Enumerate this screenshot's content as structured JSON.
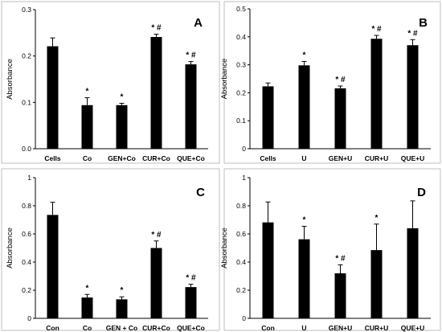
{
  "chart_data": [
    {
      "type": "bar",
      "panel_label": "A",
      "ylabel": "Absorbance",
      "categories": [
        "Cells",
        "Co",
        "GEN+Co",
        "CUR+Co",
        "QUE+Co"
      ],
      "values": [
        0.221,
        0.094,
        0.094,
        0.241,
        0.182
      ],
      "errors": [
        0.018,
        0.016,
        0.004,
        0.006,
        0.006
      ],
      "annotations": [
        "",
        "*",
        "*",
        "* #",
        "* #"
      ],
      "ylim": [
        0,
        0.3
      ],
      "yticks": [
        0.0,
        0.1,
        0.2,
        0.3
      ],
      "ytick_labels": [
        "0.0",
        "0.1",
        "0.2",
        "0.3"
      ],
      "bar_color": "#000000"
    },
    {
      "type": "bar",
      "panel_label": "B",
      "ylabel": "Absorbance",
      "categories": [
        "Cells",
        "U",
        "GEN+U",
        "CUR+U",
        "QUE+U"
      ],
      "values": [
        0.223,
        0.298,
        0.216,
        0.393,
        0.37
      ],
      "errors": [
        0.012,
        0.014,
        0.008,
        0.012,
        0.02
      ],
      "annotations": [
        "",
        "*",
        "* #",
        "* #",
        "* #"
      ],
      "ylim": [
        0,
        0.5
      ],
      "yticks": [
        0.0,
        0.1,
        0.2,
        0.3,
        0.4,
        0.5
      ],
      "ytick_labels": [
        "0",
        "0.1",
        "0.2",
        "0.3",
        "0.4",
        "0.5"
      ],
      "bar_color": "#000000"
    },
    {
      "type": "bar",
      "panel_label": "C",
      "ylabel": "Absorbance",
      "categories": [
        "Con",
        "Co",
        "GEN + Co",
        "CUR+Co",
        "QUE+Co"
      ],
      "values": [
        0.735,
        0.148,
        0.135,
        0.5,
        0.222
      ],
      "errors": [
        0.09,
        0.022,
        0.018,
        0.05,
        0.02
      ],
      "annotations": [
        "",
        "*",
        "*",
        "* #",
        "* #"
      ],
      "ylim": [
        0,
        1
      ],
      "yticks": [
        0,
        0.2,
        0.4,
        0.6,
        0.8,
        1
      ],
      "ytick_labels": [
        "0",
        "0.2",
        "0.4",
        "0.6",
        "0.8",
        "1"
      ],
      "bar_color": "#000000"
    },
    {
      "type": "bar",
      "panel_label": "D",
      "ylabel": "Absorbance",
      "categories": [
        "Con",
        "U",
        "GEN+U",
        "CUR+U",
        "QUE+U"
      ],
      "values": [
        0.682,
        0.562,
        0.32,
        0.485,
        0.64
      ],
      "errors": [
        0.145,
        0.092,
        0.06,
        0.185,
        0.195
      ],
      "annotations": [
        "",
        "*",
        "* #",
        "*",
        ""
      ],
      "ylim": [
        0,
        1
      ],
      "yticks": [
        0,
        0.2,
        0.4,
        0.6,
        0.8,
        1
      ],
      "ytick_labels": [
        "0",
        "0.2",
        "0.4",
        "0.6",
        "0.8",
        "1"
      ],
      "bar_color": "#000000"
    }
  ]
}
